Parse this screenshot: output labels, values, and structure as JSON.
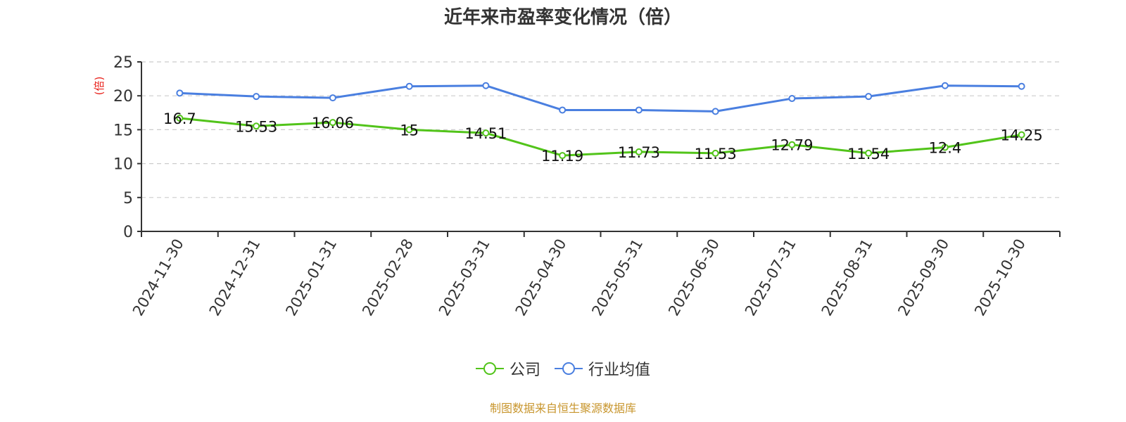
{
  "title": "近年来市盈率变化情况（倍）",
  "y_axis_unit": "(倍)",
  "source_note": "制图数据来自恒生聚源数据库",
  "colors": {
    "company": "#52c41a",
    "industry": "#4a7fe0",
    "unit_label": "#e8201a",
    "source": "#c8962e",
    "grid": "#cccccc"
  },
  "legend": [
    {
      "name": "公司",
      "color": "#52c41a"
    },
    {
      "name": "行业均值",
      "color": "#4a7fe0"
    }
  ],
  "chart_data": {
    "type": "line",
    "title": "近年来市盈率变化情况（倍）",
    "xlabel": "",
    "ylabel": "(倍)",
    "ylim": [
      0,
      25
    ],
    "yticks": [
      0,
      5,
      10,
      15,
      20,
      25
    ],
    "grid": true,
    "legend_position": "bottom",
    "categories": [
      "2024-11-30",
      "2024-12-31",
      "2025-01-31",
      "2025-02-28",
      "2025-03-31",
      "2025-04-30",
      "2025-05-31",
      "2025-06-30",
      "2025-07-31",
      "2025-08-31",
      "2025-09-30",
      "2025-10-30"
    ],
    "series": [
      {
        "name": "公司",
        "values": [
          16.7,
          15.53,
          16.06,
          15,
          14.51,
          11.19,
          11.73,
          11.53,
          12.79,
          11.54,
          12.4,
          14.25
        ],
        "labels_shown": true
      },
      {
        "name": "行业均值",
        "values": [
          20.4,
          19.9,
          19.7,
          21.4,
          21.5,
          17.9,
          17.9,
          17.7,
          19.6,
          19.9,
          21.5,
          21.4
        ],
        "labels_shown": false
      }
    ]
  }
}
